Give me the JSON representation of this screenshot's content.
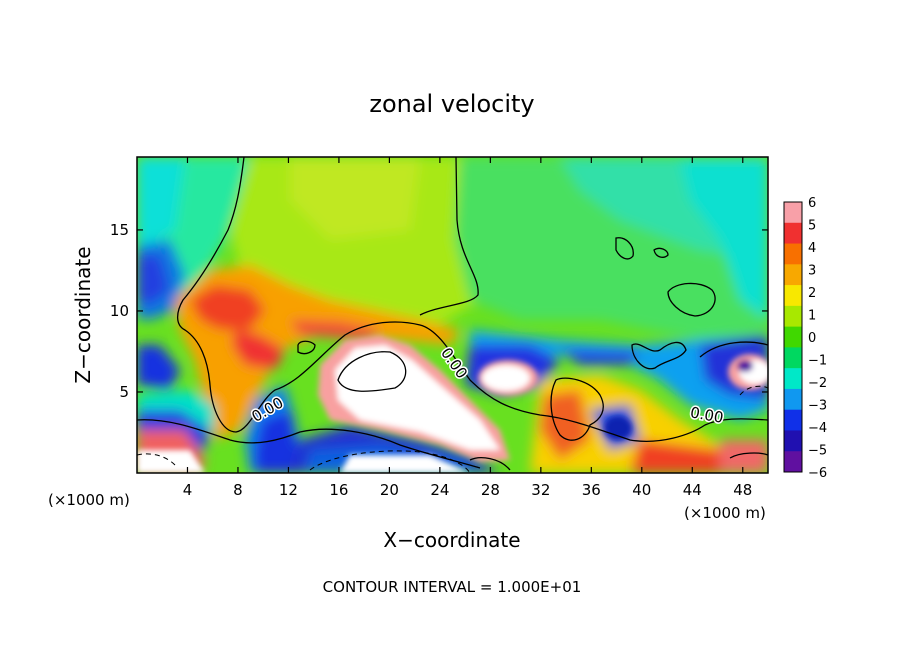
{
  "chart_data": {
    "type": "heatmap",
    "title": "zonal velocity",
    "xlabel": "X−coordinate",
    "ylabel": "Z−coordinate",
    "x_unit_label": "(×1000 m)",
    "x_unit_label_right": "(×1000 m)",
    "xlim": [
      0,
      50
    ],
    "ylim": [
      0,
      19.5
    ],
    "x_ticks": [
      4,
      8,
      12,
      16,
      20,
      24,
      28,
      32,
      36,
      40,
      44,
      48
    ],
    "x_tick_labels": [
      "4",
      "8",
      "12",
      "16",
      "20",
      "24",
      "28",
      "32",
      "36",
      "40",
      "44",
      "48"
    ],
    "y_ticks": [
      5,
      10,
      15
    ],
    "y_tick_labels": [
      "5",
      "10",
      "15"
    ],
    "colorbar": {
      "min": -6,
      "max": 6,
      "labels": [
        "6",
        "5",
        "4",
        "3",
        "2",
        "1",
        "0",
        "−1",
        "−2",
        "−3",
        "−4",
        "−5",
        "−6"
      ],
      "colors": [
        "#f8a0a8",
        "#f03030",
        "#f87000",
        "#f8a800",
        "#f8e800",
        "#a8e800",
        "#40d800",
        "#00d860",
        "#00e8c8",
        "#1098f0",
        "#1030e8",
        "#2010b0",
        "#6010a0"
      ]
    },
    "contour_labels": [
      "0.00",
      "0.00",
      "0.00",
      "0.00"
    ],
    "footer": "CONTOUR INTERVAL = 1.000E+01",
    "regions": [
      {
        "name": "upper-left-cyan",
        "x": [
          0,
          5
        ],
        "z": [
          12,
          19.5
        ],
        "value": -2
      },
      {
        "name": "upper-middle-green-yellow",
        "x": [
          5,
          25
        ],
        "z": [
          11,
          19.5
        ],
        "value": 0.8
      },
      {
        "name": "upper-right-green-cyan",
        "x": [
          25,
          50
        ],
        "z": [
          10,
          19.5
        ],
        "value": -0.5
      },
      {
        "name": "left-blue-blob",
        "x": [
          0,
          3
        ],
        "z": [
          11,
          15
        ],
        "value": -4
      },
      {
        "name": "red-blob-x8",
        "x": [
          5,
          12
        ],
        "z": [
          7,
          12
        ],
        "value": 4.5
      },
      {
        "name": "white-core-x20",
        "x": [
          15,
          25
        ],
        "z": [
          3,
          8
        ],
        "value": 7
      },
      {
        "name": "white-core-x29",
        "x": [
          27,
          31
        ],
        "z": [
          5,
          7.5
        ],
        "value": 7
      },
      {
        "name": "white-core-x48",
        "x": [
          46,
          50
        ],
        "z": [
          5,
          8
        ],
        "value": 7
      },
      {
        "name": "blue-band-mid",
        "x": [
          26,
          45
        ],
        "z": [
          6,
          8.5
        ],
        "value": -4
      },
      {
        "name": "blue-column-x12",
        "x": [
          10,
          14
        ],
        "z": [
          0,
          5
        ],
        "value": -4.5
      },
      {
        "name": "blue-band-left",
        "x": [
          0,
          8
        ],
        "z": [
          0.8,
          3.5
        ],
        "value": -4
      }
    ]
  }
}
